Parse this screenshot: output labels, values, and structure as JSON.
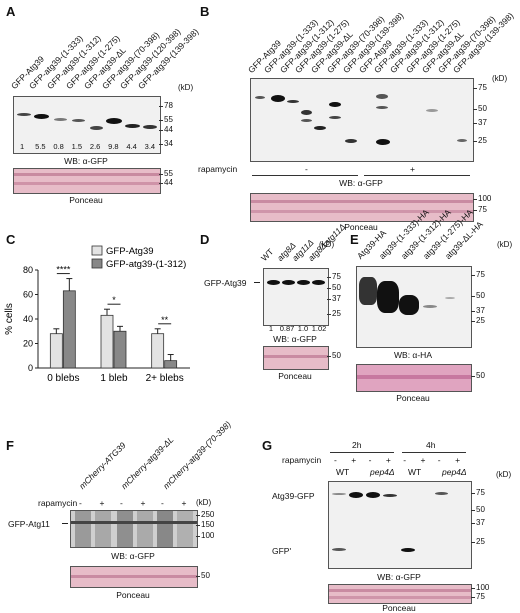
{
  "panels": {
    "A": {
      "label": "A",
      "lanes": [
        "GFP-Atg39",
        "GFP-atg39-(1-333)",
        "GFP-atg39-(1-312)",
        "GFP-atg39-(1-275)",
        "GFP-atg39-ΔL",
        "GFP-atg39-(70-398)",
        "GFP-atg39-(120-398)",
        "GFP-atg39-(139-398)"
      ],
      "kd_unit": "(kD)",
      "markers": [
        "78",
        "55",
        "44",
        "34"
      ],
      "quant": [
        "1",
        "5.5",
        "0.8",
        "1.5",
        "2.6",
        "9.8",
        "4.4",
        "3.4"
      ],
      "wb_label": "WB: α-GFP",
      "ponceau_markers": [
        "55",
        "44"
      ],
      "ponceau_label": "Ponceau"
    },
    "B": {
      "label": "B",
      "lanes": [
        "GFP-Atg39",
        "GFP-atg39-(1-333)",
        "GFP-atg39-(1-312)",
        "GFP-atg39-(1-275)",
        "GFP-atg39-ΔL",
        "GFP-atg39-(70-398)",
        "GFP-atg39-(139-398)",
        "GFP-Atg39",
        "GFP-atg39-(1-333)",
        "GFP-atg39-(1-312)",
        "GFP-atg39-(1-275)",
        "GFP-atg39-ΔL",
        "GFP-atg39-(70-398)",
        "GFP-atg39-(139-398)"
      ],
      "kd_unit": "(kD)",
      "markers": [
        "75",
        "50",
        "37",
        "25"
      ],
      "rapamycin_label": "rapamycin",
      "minus": "-",
      "plus": "+",
      "wb_label": "WB: α-GFP",
      "ponceau_markers": [
        "100",
        "75"
      ],
      "ponceau_label": "Ponceau"
    },
    "C": {
      "label": "C",
      "ylabel": "% cells",
      "legend": [
        "GFP-Atg39",
        "GFP-atg39-(1-312)"
      ],
      "yticks": [
        "0",
        "20",
        "40",
        "60",
        "80"
      ],
      "significance": [
        "****",
        "*",
        "**"
      ]
    },
    "D": {
      "label": "D",
      "lanes": [
        "WT",
        "atg8Δ",
        "atg11Δ",
        "atg8Δatg11Δ"
      ],
      "row_label": "GFP-Atg39",
      "kd_unit": "(kD)",
      "markers": [
        "75",
        "50",
        "37",
        "25"
      ],
      "quant": [
        "1",
        "0.87",
        "1.0",
        "1.02"
      ],
      "wb_label": "WB: α-GFP",
      "ponceau_markers": [
        "50"
      ],
      "ponceau_label": "Ponceau"
    },
    "E": {
      "label": "E",
      "lanes": [
        "Atg39-HA",
        "atg39-(1-333)-HA",
        "atg39-(1-312)-HA",
        "atg39-(1-275)-HA",
        "atg39-ΔL-HA"
      ],
      "kd_unit": "(kD)",
      "markers": [
        "75",
        "50",
        "37",
        "25"
      ],
      "wb_label": "WB: α-HA",
      "ponceau_markers": [
        "50"
      ],
      "ponceau_label": "Ponceau"
    },
    "F": {
      "label": "F",
      "lanes": [
        "mCherry-ATG39",
        "mCherry-atg39-ΔL",
        "mCherry-atg39-(70-398)"
      ],
      "rapamycin_label": "rapamycin",
      "signs": [
        "-",
        "+",
        "-",
        "+",
        "-",
        "+"
      ],
      "row_label": "GFP-Atg11",
      "kd_unit": "(kD)",
      "markers": [
        "250",
        "150",
        "100"
      ],
      "wb_label": "WB: α-GFP",
      "ponceau_markers": [
        "50"
      ],
      "ponceau_label": "Ponceau"
    },
    "G": {
      "label": "G",
      "timepoints": [
        "2h",
        "4h"
      ],
      "rapamycin_label": "rapamycin",
      "signs": [
        "-",
        "+",
        "-",
        "+",
        "-",
        "+",
        "-",
        "+"
      ],
      "strains": [
        "WT",
        "pep4Δ",
        "WT",
        "pep4Δ"
      ],
      "row_labels": [
        "Atg39-GFP",
        "GFP'"
      ],
      "kd_unit": "(kD)",
      "markers": [
        "75",
        "50",
        "37",
        "25"
      ],
      "wb_label": "WB: α-GFP",
      "ponceau_markers": [
        "100",
        "75"
      ],
      "ponceau_label": "Ponceau"
    }
  },
  "chart_data": {
    "type": "bar",
    "categories": [
      "0 blebs",
      "1 bleb",
      "2+ blebs"
    ],
    "series": [
      {
        "name": "GFP-Atg39",
        "values": [
          28,
          43,
          28
        ],
        "errors": [
          4,
          5,
          4
        ],
        "color": "#e3e3e3"
      },
      {
        "name": "GFP-atg39-(1-312)",
        "values": [
          63,
          30,
          6
        ],
        "errors": [
          10,
          4,
          5
        ],
        "color": "#888888"
      }
    ],
    "ylabel": "% cells",
    "ylim": [
      0,
      80
    ],
    "yticks": [
      0,
      20,
      40,
      60,
      80
    ],
    "significance": [
      "****",
      "*",
      "**"
    ],
    "legend_position": "top-right"
  }
}
